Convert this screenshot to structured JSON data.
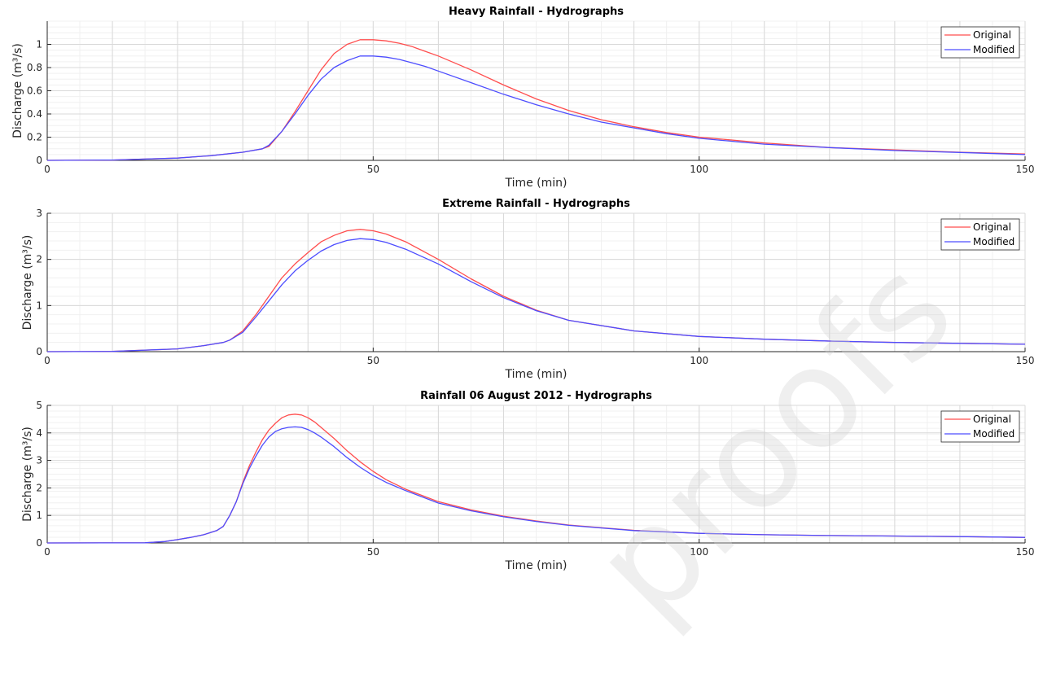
{
  "chart_data": [
    {
      "type": "line",
      "title": "Heavy Rainfall - Hydrographs",
      "xlabel": "Time (min)",
      "ylabel": "Discharge (m³/s)",
      "xlim": [
        0,
        150
      ],
      "ylim": [
        0,
        1.2
      ],
      "xticks": [
        "0",
        "50",
        "100",
        "150"
      ],
      "yticks": [
        "0",
        "0.2",
        "0.4",
        "0.6",
        "0.8",
        "1"
      ],
      "grid": true,
      "legend": "top-right",
      "series": [
        {
          "name": "Original",
          "color": "#ff4d4d",
          "x": [
            0,
            10,
            20,
            25,
            30,
            33,
            34,
            36,
            38,
            40,
            42,
            44,
            46,
            48,
            50,
            52,
            54,
            56,
            58,
            60,
            65,
            70,
            75,
            80,
            85,
            90,
            95,
            100,
            110,
            120,
            130,
            140,
            150
          ],
          "y": [
            0,
            0.003,
            0.02,
            0.04,
            0.07,
            0.1,
            0.12,
            0.25,
            0.42,
            0.6,
            0.78,
            0.92,
            1.0,
            1.04,
            1.04,
            1.03,
            1.01,
            0.98,
            0.94,
            0.9,
            0.78,
            0.65,
            0.53,
            0.43,
            0.35,
            0.29,
            0.24,
            0.2,
            0.15,
            0.11,
            0.09,
            0.07,
            0.055
          ]
        },
        {
          "name": "Modified",
          "color": "#4d4dff",
          "x": [
            0,
            10,
            20,
            25,
            30,
            33,
            34,
            36,
            38,
            40,
            42,
            44,
            46,
            48,
            50,
            52,
            54,
            56,
            58,
            60,
            65,
            70,
            75,
            80,
            85,
            90,
            95,
            100,
            110,
            120,
            130,
            140,
            150
          ],
          "y": [
            0,
            0.003,
            0.02,
            0.04,
            0.07,
            0.1,
            0.13,
            0.25,
            0.4,
            0.56,
            0.7,
            0.8,
            0.86,
            0.9,
            0.9,
            0.89,
            0.87,
            0.84,
            0.81,
            0.77,
            0.67,
            0.57,
            0.48,
            0.4,
            0.33,
            0.28,
            0.23,
            0.19,
            0.14,
            0.11,
            0.085,
            0.068,
            0.05
          ]
        }
      ]
    },
    {
      "type": "line",
      "title": "Extreme Rainfall - Hydrographs",
      "xlabel": "Time (min)",
      "ylabel": "Discharge (m³/s)",
      "xlim": [
        0,
        150
      ],
      "ylim": [
        0,
        3
      ],
      "xticks": [
        "0",
        "50",
        "100",
        "150"
      ],
      "yticks": [
        "0",
        "1",
        "2",
        "3"
      ],
      "grid": true,
      "legend": "top-right",
      "series": [
        {
          "name": "Original",
          "color": "#ff4d4d",
          "x": [
            0,
            10,
            20,
            24,
            27,
            28,
            30,
            32,
            34,
            36,
            38,
            40,
            42,
            44,
            46,
            48,
            50,
            52,
            55,
            60,
            65,
            70,
            75,
            80,
            90,
            100,
            110,
            120,
            130,
            140,
            150
          ],
          "y": [
            0,
            0.005,
            0.06,
            0.13,
            0.2,
            0.25,
            0.45,
            0.8,
            1.2,
            1.6,
            1.9,
            2.15,
            2.38,
            2.52,
            2.62,
            2.65,
            2.62,
            2.55,
            2.38,
            2.0,
            1.58,
            1.2,
            0.9,
            0.68,
            0.45,
            0.33,
            0.27,
            0.23,
            0.2,
            0.18,
            0.16
          ]
        },
        {
          "name": "Modified",
          "color": "#4d4dff",
          "x": [
            0,
            10,
            20,
            24,
            27,
            28,
            30,
            32,
            34,
            36,
            38,
            40,
            42,
            44,
            46,
            48,
            50,
            52,
            55,
            60,
            65,
            70,
            75,
            80,
            90,
            100,
            110,
            120,
            130,
            140,
            150
          ],
          "y": [
            0,
            0.005,
            0.06,
            0.13,
            0.2,
            0.25,
            0.42,
            0.75,
            1.1,
            1.45,
            1.75,
            1.98,
            2.18,
            2.32,
            2.41,
            2.45,
            2.43,
            2.37,
            2.22,
            1.9,
            1.52,
            1.17,
            0.89,
            0.68,
            0.45,
            0.33,
            0.27,
            0.23,
            0.2,
            0.18,
            0.16
          ]
        }
      ]
    },
    {
      "type": "line",
      "title": "Rainfall 06 August 2012 - Hydrographs",
      "xlabel": "Time (min)",
      "ylabel": "Discharge (m³/s)",
      "xlim": [
        0,
        150
      ],
      "ylim": [
        0,
        5
      ],
      "xticks": [
        "0",
        "50",
        "100",
        "150"
      ],
      "yticks": [
        "0",
        "1",
        "2",
        "3",
        "4",
        "5"
      ],
      "grid": true,
      "legend": "top-right",
      "series": [
        {
          "name": "Original",
          "color": "#ff4d4d",
          "x": [
            0,
            15,
            18,
            20,
            22,
            24,
            26,
            27,
            28,
            29,
            30,
            31,
            32,
            33,
            34,
            35,
            36,
            37,
            38,
            39,
            40,
            41,
            42,
            44,
            46,
            48,
            50,
            52,
            55,
            60,
            65,
            70,
            75,
            80,
            90,
            100,
            110,
            120,
            130,
            140,
            150
          ],
          "y": [
            0,
            0.005,
            0.05,
            0.12,
            0.2,
            0.3,
            0.45,
            0.6,
            1.0,
            1.5,
            2.2,
            2.8,
            3.3,
            3.75,
            4.1,
            4.35,
            4.55,
            4.65,
            4.68,
            4.65,
            4.55,
            4.4,
            4.2,
            3.8,
            3.35,
            2.95,
            2.6,
            2.3,
            1.95,
            1.5,
            1.2,
            0.97,
            0.8,
            0.65,
            0.46,
            0.35,
            0.3,
            0.27,
            0.25,
            0.23,
            0.2
          ]
        },
        {
          "name": "Modified",
          "color": "#4d4dff",
          "x": [
            0,
            15,
            18,
            20,
            22,
            24,
            26,
            27,
            28,
            29,
            30,
            31,
            32,
            33,
            34,
            35,
            36,
            37,
            38,
            39,
            40,
            41,
            42,
            44,
            46,
            48,
            50,
            52,
            55,
            60,
            65,
            70,
            75,
            80,
            90,
            100,
            110,
            120,
            130,
            140,
            150
          ],
          "y": [
            0,
            0.005,
            0.05,
            0.12,
            0.2,
            0.3,
            0.45,
            0.6,
            1.0,
            1.5,
            2.15,
            2.7,
            3.15,
            3.55,
            3.85,
            4.05,
            4.15,
            4.2,
            4.22,
            4.2,
            4.12,
            4.0,
            3.85,
            3.5,
            3.1,
            2.75,
            2.45,
            2.2,
            1.9,
            1.45,
            1.17,
            0.95,
            0.78,
            0.64,
            0.45,
            0.35,
            0.3,
            0.27,
            0.25,
            0.23,
            0.2
          ]
        }
      ]
    }
  ],
  "watermark": "proofs"
}
